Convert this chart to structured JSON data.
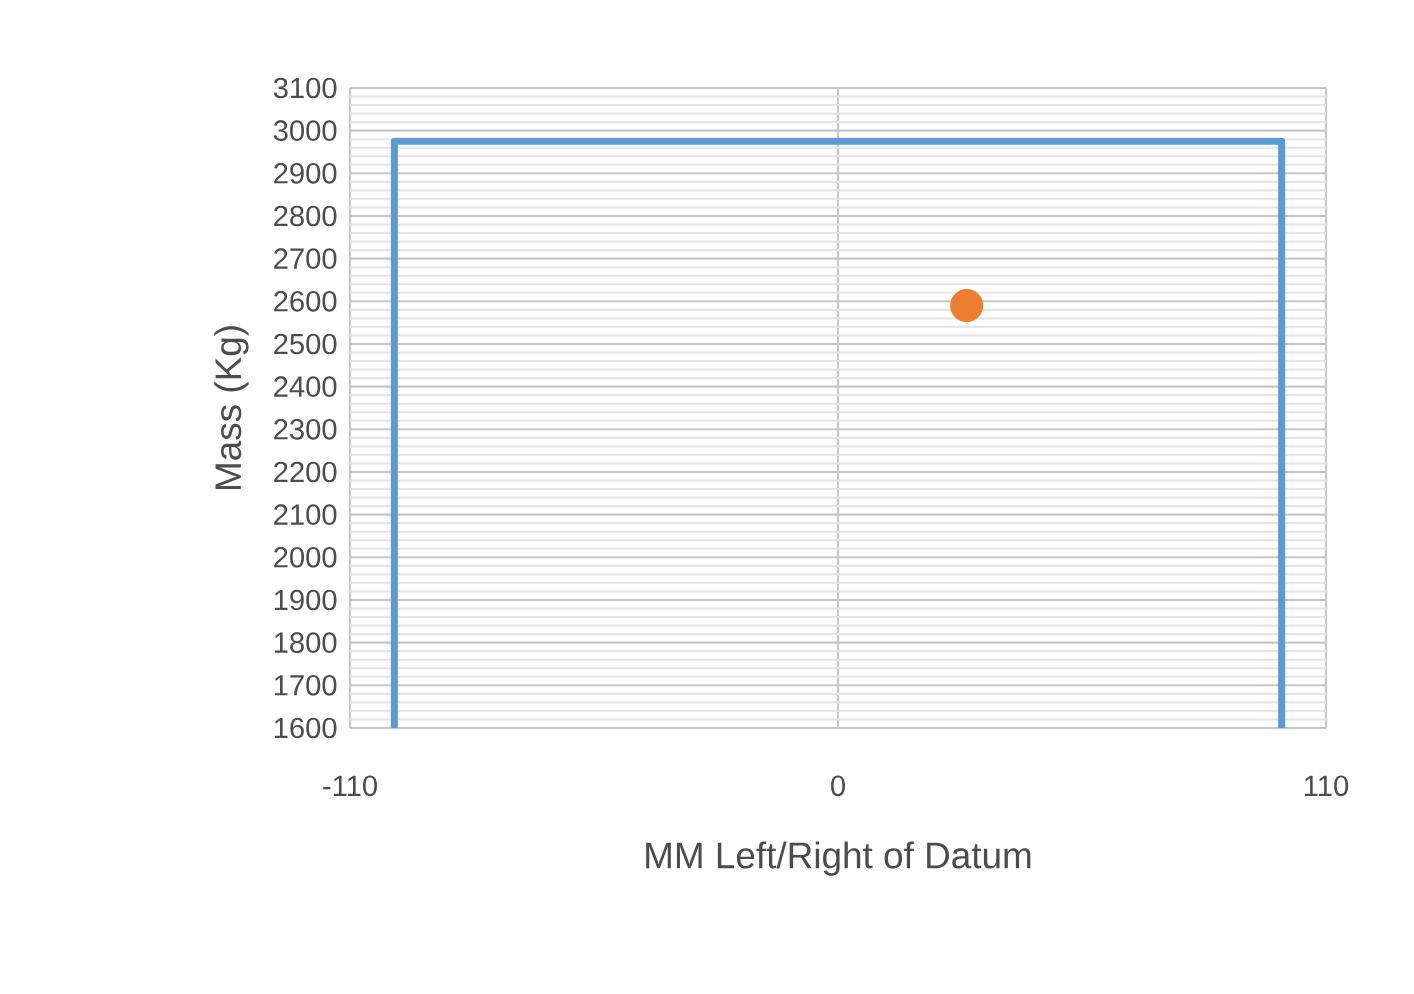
{
  "chart_data": {
    "type": "scatter",
    "xlabel": "MM Left/Right of Datum",
    "ylabel": "Mass (Kg)",
    "xlim": [
      -110,
      110
    ],
    "xticks": [
      -110,
      0,
      110
    ],
    "ylim": [
      1600,
      3100
    ],
    "yticks": [
      1600,
      1700,
      1800,
      1900,
      2000,
      2100,
      2200,
      2300,
      2400,
      2500,
      2600,
      2700,
      2800,
      2900,
      3000,
      3100
    ],
    "grid": true,
    "series": [
      {
        "type": "line",
        "color": "#5b9bd5",
        "x": [
          -100,
          -100,
          100,
          100
        ],
        "values": [
          1600,
          2975,
          2975,
          1600
        ],
        "marker": "none",
        "line_style": "solid"
      },
      {
        "color": "#ed7d31",
        "x": [
          29
        ],
        "values": [
          2590
        ],
        "marker": "circle"
      }
    ]
  }
}
